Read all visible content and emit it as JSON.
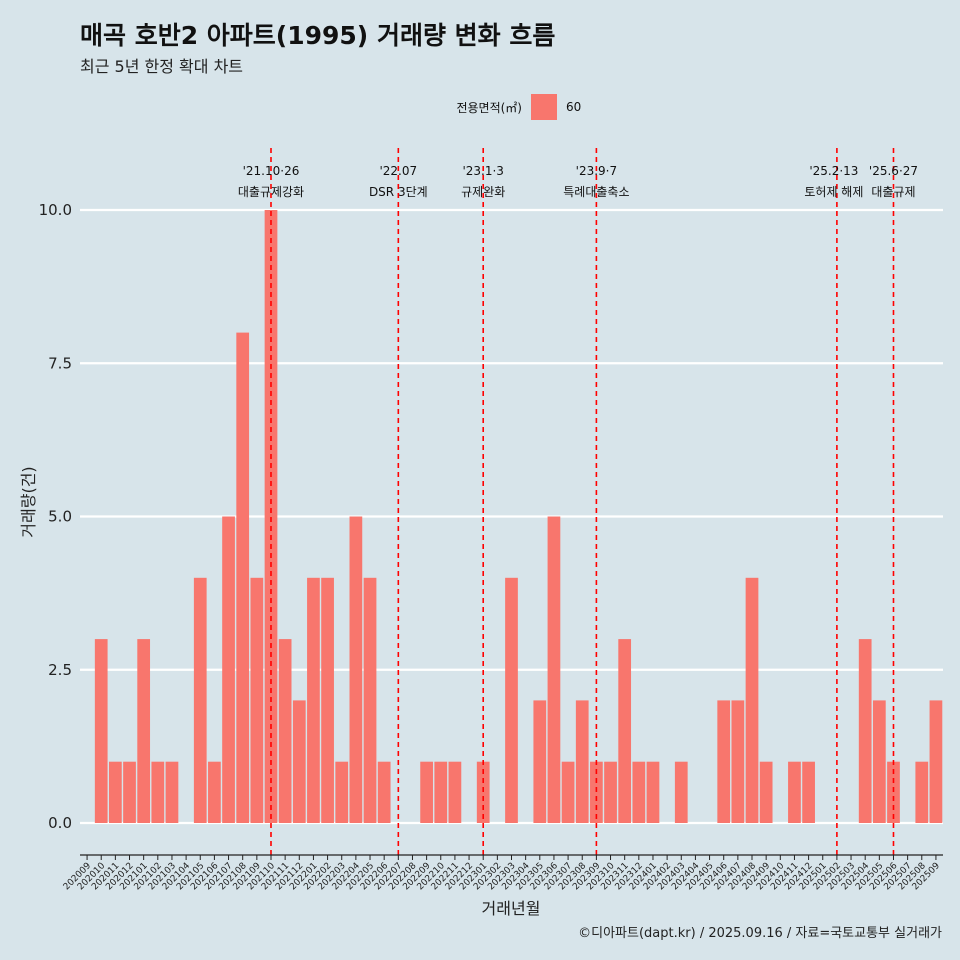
{
  "chart_data": {
    "type": "bar",
    "title": "매곡 호반2 아파트(1995) 거래량 변화 흐름",
    "subtitle": "최근 5년 한정 확대 차트",
    "xlabel": "거래년월",
    "ylabel": "거래량(건)",
    "ylim": [
      -0.45,
      11.1
    ],
    "yticks": [
      "0.0",
      "2.5",
      "5.0",
      "7.5",
      "10.0"
    ],
    "grid": "horizontal",
    "legend": {
      "title": "전용면적(㎡)",
      "entries": [
        "60"
      ],
      "placement": "top-center"
    },
    "colors": {
      "bar": "#f8766d",
      "event_line": "#ff0000",
      "background": "#d7e4ea",
      "grid": "#ffffff"
    },
    "categories": [
      "202009",
      "202010",
      "202011",
      "202012",
      "202101",
      "202102",
      "202103",
      "202104",
      "202105",
      "202106",
      "202107",
      "202108",
      "202109",
      "202110",
      "202111",
      "202112",
      "202201",
      "202202",
      "202203",
      "202204",
      "202205",
      "202206",
      "202207",
      "202208",
      "202209",
      "202210",
      "202211",
      "202212",
      "202301",
      "202302",
      "202303",
      "202304",
      "202305",
      "202306",
      "202307",
      "202308",
      "202309",
      "202310",
      "202311",
      "202312",
      "202401",
      "202402",
      "202403",
      "202404",
      "202405",
      "202406",
      "202407",
      "202408",
      "202409",
      "202410",
      "202411",
      "202412",
      "202501",
      "202502",
      "202503",
      "202504",
      "202505",
      "202506",
      "202507",
      "202508",
      "202509"
    ],
    "series": [
      {
        "name": "60",
        "values": [
          0,
          3,
          1,
          1,
          3,
          1,
          1,
          0,
          4,
          1,
          5,
          8,
          4,
          10,
          3,
          2,
          4,
          4,
          1,
          5,
          4,
          1,
          0,
          0,
          1,
          1,
          1,
          0,
          1,
          0,
          4,
          0,
          2,
          5,
          1,
          2,
          1,
          1,
          3,
          1,
          1,
          0,
          1,
          0,
          0,
          2,
          2,
          4,
          1,
          0,
          1,
          1,
          0,
          0,
          0,
          3,
          2,
          1,
          0,
          1,
          2
        ]
      }
    ],
    "annotations": [
      {
        "date": "'21.10·26",
        "label": "대출규제강화",
        "category": "202110"
      },
      {
        "date": "'22.07",
        "label": "DSR 3단계",
        "category": "202207"
      },
      {
        "date": "'23.1·3",
        "label": "규제완화",
        "category": "202301"
      },
      {
        "date": "'23.9·7",
        "label": "특례대출축소",
        "category": "202309"
      },
      {
        "date": "'25.2·13",
        "label": "토허제 해제",
        "category": "202502"
      },
      {
        "date": "'25.6·27",
        "label": "대출규제",
        "category": "202506"
      }
    ]
  },
  "footer": {
    "caption": "©디아파트(dapt.kr) / 2025.09.16 / 자료=국토교통부 실거래가"
  }
}
